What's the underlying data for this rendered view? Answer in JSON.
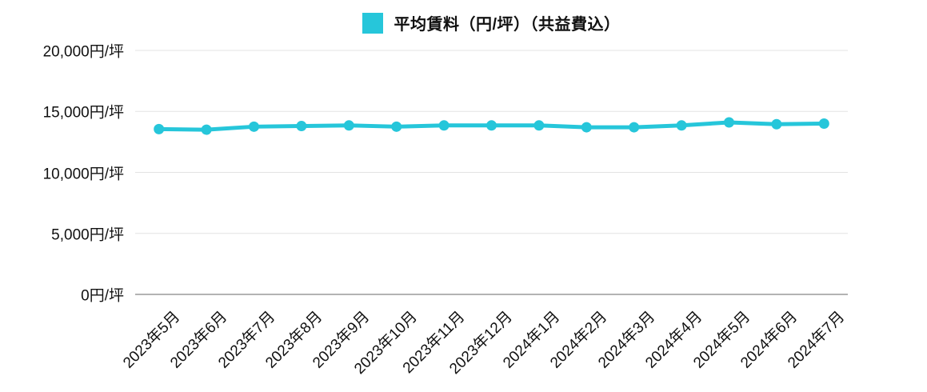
{
  "legend": {
    "label": "平均賃料（円/坪）（共益費込）",
    "color": "#26C6DA"
  },
  "colors": {
    "series": "#26C6DA",
    "grid": "#e3e3e3",
    "axis": "#9a9a9a",
    "text": "#111111",
    "background": "#ffffff"
  },
  "chart_data": {
    "type": "line",
    "title": "",
    "xlabel": "",
    "ylabel": "",
    "categories": [
      "2023年5月",
      "2023年6月",
      "2023年7月",
      "2023年8月",
      "2023年9月",
      "2023年10月",
      "2023年11月",
      "2023年12月",
      "2024年1月",
      "2024年2月",
      "2024年3月",
      "2024年4月",
      "2024年5月",
      "2024年6月",
      "2024年7月"
    ],
    "series": [
      {
        "name": "平均賃料（円/坪）（共益費込）",
        "color": "#26C6DA",
        "values": [
          13550,
          13500,
          13750,
          13800,
          13850,
          13750,
          13850,
          13850,
          13850,
          13700,
          13700,
          13850,
          14100,
          13950,
          14000
        ]
      }
    ],
    "ylim": [
      0,
      20000
    ],
    "ytick_step": 5000,
    "ytick_labels": [
      "0円/坪",
      "5,000円/坪",
      "10,000円/坪",
      "15,000円/坪",
      "20,000円/坪"
    ],
    "grid": "horizontal-only",
    "legend_position": "top-center"
  }
}
